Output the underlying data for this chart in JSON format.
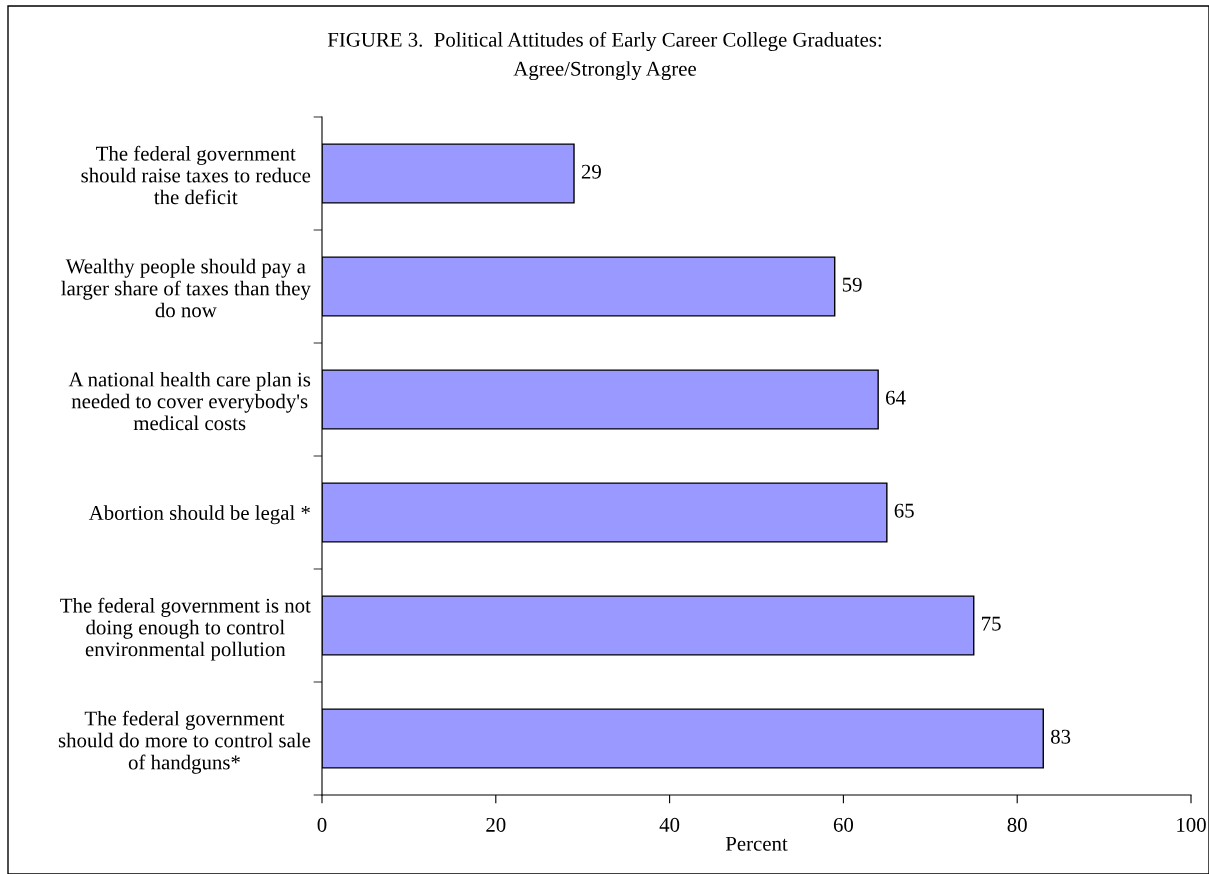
{
  "chart_data": {
    "type": "bar",
    "orientation": "horizontal",
    "title": "FIGURE 3.  Political Attitudes of Early Career College Graduates:\nAgree/Strongly Agree",
    "xlabel": "Percent",
    "categories": [
      "The federal government\nshould raise taxes to reduce\nthe deficit",
      "Wealthy people should pay a\nlarger share of taxes than they\ndo now",
      "A national health care plan is\nneeded to cover everybody's\nmedical costs",
      "Abortion should be legal *",
      "The federal government is not\ndoing enough to control\nenvironmental pollution",
      "The federal government\nshould do more to control sale\nof handguns*"
    ],
    "values": [
      29,
      59,
      64,
      65,
      75,
      83
    ],
    "color": "#9999ff",
    "data_labels": true,
    "xlim": [
      0,
      100
    ],
    "xticks": [
      0,
      20,
      40,
      60,
      80,
      100
    ],
    "grid": false,
    "legend": false
  }
}
